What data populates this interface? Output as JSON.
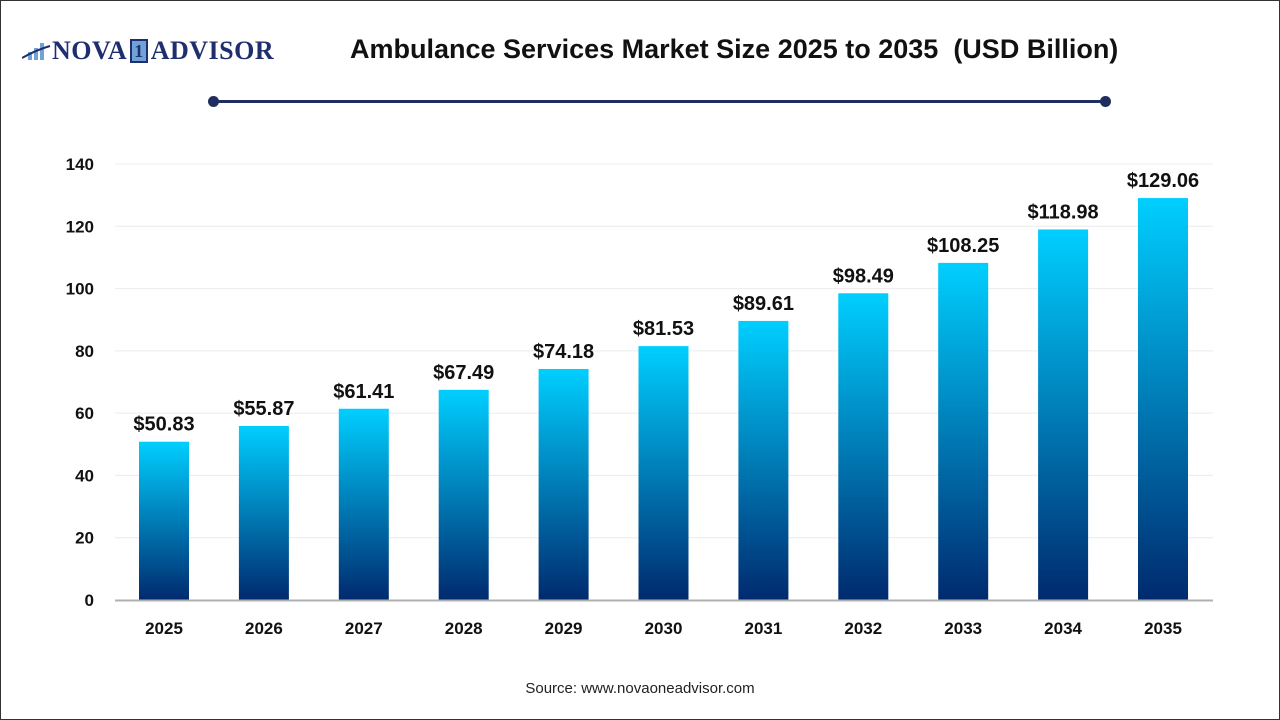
{
  "brand": {
    "logo_text_left": "NOVA",
    "logo_digit": "1",
    "logo_text_right": "ADVISOR"
  },
  "source": "Source: www.novaoneadvisor.com",
  "chart_data": {
    "type": "bar",
    "title": "Ambulance Services Market Size 2025 to 2035  (USD Billion)",
    "xlabel": "",
    "ylabel": "",
    "categories": [
      "2025",
      "2026",
      "2027",
      "2028",
      "2029",
      "2030",
      "2031",
      "2032",
      "2033",
      "2034",
      "2035"
    ],
    "values": [
      50.83,
      55.87,
      61.41,
      67.49,
      74.18,
      81.53,
      89.61,
      98.49,
      108.25,
      118.98,
      129.06
    ],
    "data_labels": [
      "$50.83",
      "$55.87",
      "$61.41",
      "$67.49",
      "$74.18",
      "$81.53",
      "$89.61",
      "$98.49",
      "$108.25",
      "$118.98",
      "$129.06"
    ],
    "ylim": [
      0,
      140
    ],
    "yticks": [
      0,
      20,
      40,
      60,
      80,
      100,
      120,
      140
    ],
    "grid": true,
    "colors": {
      "bar_top": "#00cfff",
      "bar_bottom": "#002a6e",
      "accent_line": "#1f2e5e"
    }
  }
}
